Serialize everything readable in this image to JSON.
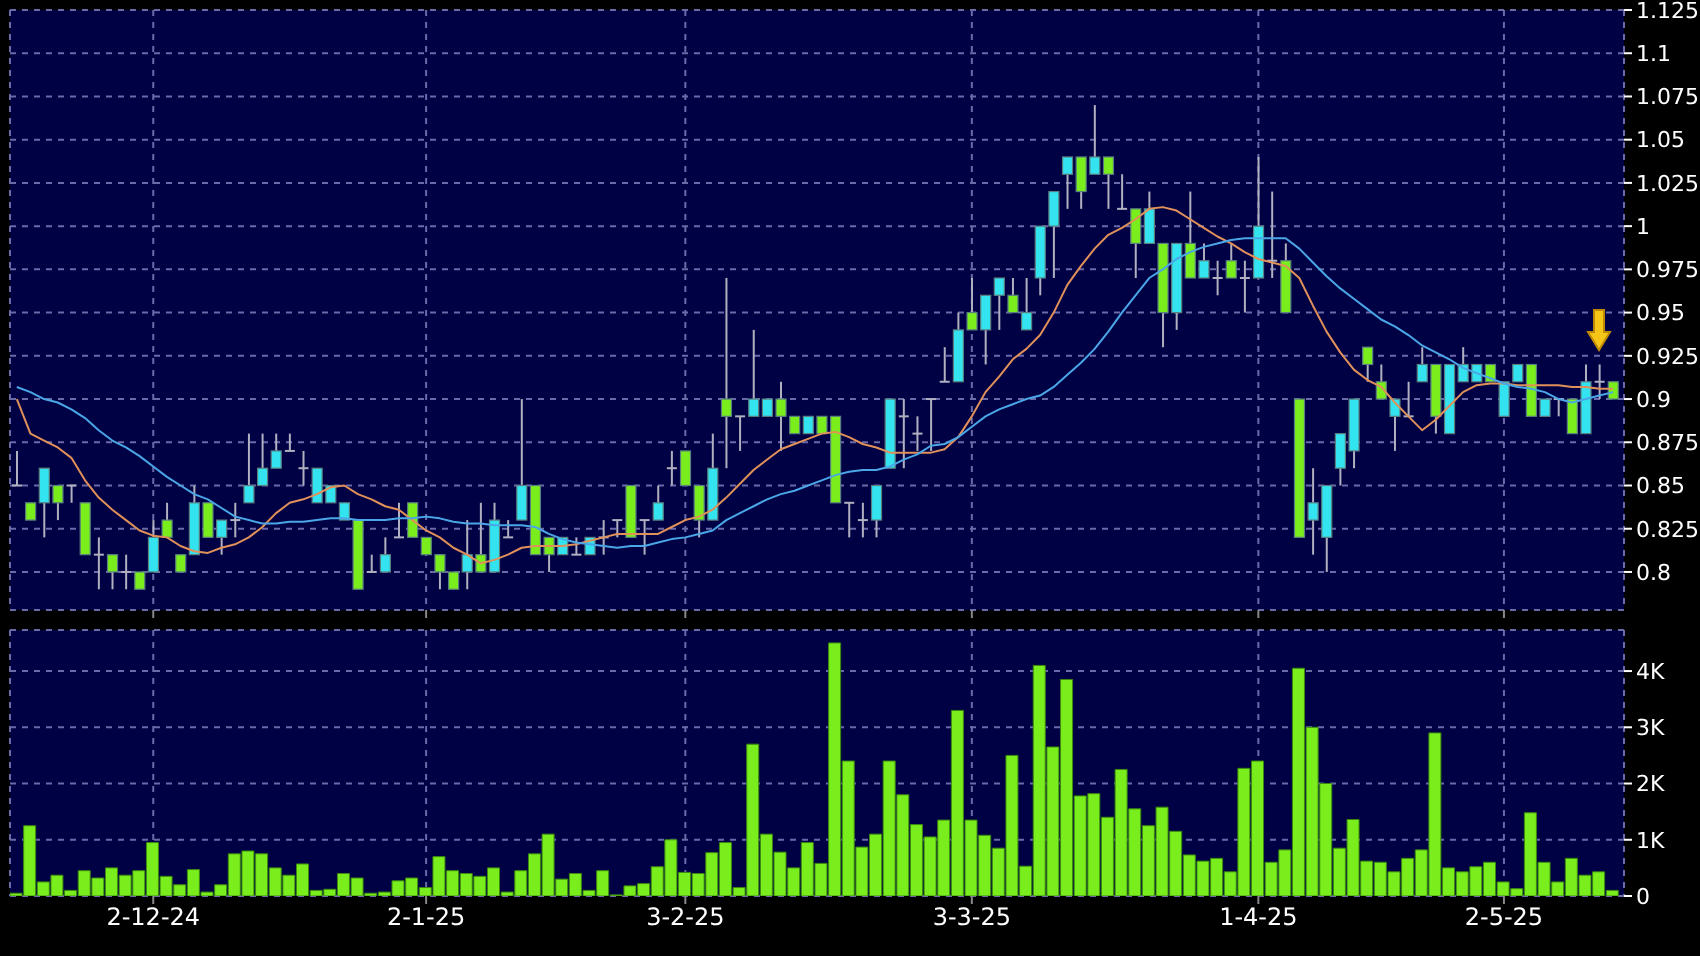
{
  "chart_data": [
    {
      "type": "candlestick",
      "ohlc": [
        [
          0.85,
          0.87,
          0.85,
          0.85
        ],
        [
          0.84,
          0.84,
          0.83,
          0.83
        ],
        [
          0.84,
          0.86,
          0.82,
          0.86
        ],
        [
          0.85,
          0.85,
          0.83,
          0.84
        ],
        [
          0.85,
          0.85,
          0.84,
          0.85
        ],
        [
          0.84,
          0.84,
          0.81,
          0.81
        ],
        [
          0.81,
          0.82,
          0.79,
          0.81
        ],
        [
          0.81,
          0.81,
          0.79,
          0.8
        ],
        [
          0.8,
          0.81,
          0.79,
          0.8
        ],
        [
          0.8,
          0.8,
          0.79,
          0.79
        ],
        [
          0.8,
          0.83,
          0.8,
          0.82
        ],
        [
          0.83,
          0.84,
          0.82,
          0.82
        ],
        [
          0.81,
          0.81,
          0.8,
          0.8
        ],
        [
          0.81,
          0.85,
          0.81,
          0.84
        ],
        [
          0.84,
          0.84,
          0.82,
          0.82
        ],
        [
          0.82,
          0.83,
          0.81,
          0.83
        ],
        [
          0.83,
          0.84,
          0.82,
          0.83
        ],
        [
          0.84,
          0.88,
          0.84,
          0.85
        ],
        [
          0.85,
          0.88,
          0.85,
          0.86
        ],
        [
          0.86,
          0.88,
          0.86,
          0.87
        ],
        [
          0.87,
          0.88,
          0.87,
          0.87
        ],
        [
          0.86,
          0.87,
          0.85,
          0.86
        ],
        [
          0.84,
          0.86,
          0.84,
          0.86
        ],
        [
          0.84,
          0.85,
          0.84,
          0.85
        ],
        [
          0.83,
          0.84,
          0.83,
          0.84
        ],
        [
          0.83,
          0.83,
          0.79,
          0.79
        ],
        [
          0.8,
          0.81,
          0.8,
          0.8
        ],
        [
          0.8,
          0.82,
          0.8,
          0.81
        ],
        [
          0.82,
          0.84,
          0.82,
          0.82
        ],
        [
          0.84,
          0.84,
          0.82,
          0.82
        ],
        [
          0.82,
          0.82,
          0.81,
          0.81
        ],
        [
          0.81,
          0.81,
          0.79,
          0.8
        ],
        [
          0.8,
          0.8,
          0.79,
          0.79
        ],
        [
          0.8,
          0.83,
          0.79,
          0.81
        ],
        [
          0.81,
          0.84,
          0.8,
          0.8
        ],
        [
          0.8,
          0.84,
          0.8,
          0.83
        ],
        [
          0.82,
          0.83,
          0.82,
          0.82
        ],
        [
          0.83,
          0.9,
          0.83,
          0.85
        ],
        [
          0.85,
          0.85,
          0.81,
          0.81
        ],
        [
          0.82,
          0.82,
          0.8,
          0.81
        ],
        [
          0.81,
          0.82,
          0.81,
          0.82
        ],
        [
          0.81,
          0.82,
          0.81,
          0.81
        ],
        [
          0.81,
          0.82,
          0.81,
          0.82
        ],
        [
          0.82,
          0.83,
          0.81,
          0.82
        ],
        [
          0.83,
          0.83,
          0.82,
          0.83
        ],
        [
          0.85,
          0.85,
          0.82,
          0.82
        ],
        [
          0.83,
          0.83,
          0.81,
          0.83
        ],
        [
          0.83,
          0.85,
          0.83,
          0.84
        ],
        [
          0.86,
          0.87,
          0.85,
          0.86
        ],
        [
          0.87,
          0.87,
          0.85,
          0.85
        ],
        [
          0.85,
          0.85,
          0.82,
          0.83
        ],
        [
          0.83,
          0.88,
          0.83,
          0.86
        ],
        [
          0.9,
          0.97,
          0.86,
          0.89
        ],
        [
          0.89,
          0.89,
          0.87,
          0.89
        ],
        [
          0.89,
          0.94,
          0.89,
          0.9
        ],
        [
          0.89,
          0.9,
          0.89,
          0.9
        ],
        [
          0.9,
          0.91,
          0.87,
          0.89
        ],
        [
          0.89,
          0.89,
          0.88,
          0.88
        ],
        [
          0.88,
          0.89,
          0.88,
          0.89
        ],
        [
          0.89,
          0.89,
          0.88,
          0.88
        ],
        [
          0.89,
          0.89,
          0.84,
          0.84
        ],
        [
          0.84,
          0.84,
          0.82,
          0.84
        ],
        [
          0.83,
          0.84,
          0.82,
          0.83
        ],
        [
          0.83,
          0.85,
          0.82,
          0.85
        ],
        [
          0.86,
          0.9,
          0.86,
          0.9
        ],
        [
          0.89,
          0.9,
          0.86,
          0.89
        ],
        [
          0.88,
          0.89,
          0.87,
          0.88
        ],
        [
          0.9,
          0.9,
          0.87,
          0.9
        ],
        [
          0.91,
          0.93,
          0.91,
          0.91
        ],
        [
          0.91,
          0.95,
          0.91,
          0.94
        ],
        [
          0.95,
          0.97,
          0.94,
          0.94
        ],
        [
          0.94,
          0.96,
          0.92,
          0.96
        ],
        [
          0.96,
          0.97,
          0.94,
          0.97
        ],
        [
          0.96,
          0.97,
          0.95,
          0.95
        ],
        [
          0.94,
          0.97,
          0.94,
          0.95
        ],
        [
          0.97,
          1.0,
          0.96,
          1.0
        ],
        [
          1.0,
          1.02,
          0.97,
          1.02
        ],
        [
          1.03,
          1.04,
          1.01,
          1.04
        ],
        [
          1.04,
          1.04,
          1.01,
          1.02
        ],
        [
          1.03,
          1.07,
          1.03,
          1.04
        ],
        [
          1.04,
          1.04,
          1.01,
          1.03
        ],
        [
          1.01,
          1.03,
          1.01,
          1.01
        ],
        [
          1.01,
          1.01,
          0.97,
          0.99
        ],
        [
          0.99,
          1.02,
          0.99,
          1.01
        ],
        [
          0.99,
          0.99,
          0.93,
          0.95
        ],
        [
          0.95,
          0.99,
          0.94,
          0.99
        ],
        [
          0.99,
          1.02,
          0.97,
          0.97
        ],
        [
          0.97,
          0.99,
          0.97,
          0.98
        ],
        [
          0.97,
          0.98,
          0.96,
          0.97
        ],
        [
          0.98,
          0.99,
          0.97,
          0.97
        ],
        [
          0.97,
          0.98,
          0.95,
          0.97
        ],
        [
          0.97,
          1.04,
          0.97,
          1.0
        ],
        [
          0.98,
          1.02,
          0.97,
          0.98
        ],
        [
          0.98,
          0.99,
          0.95,
          0.95
        ],
        [
          0.9,
          0.9,
          0.82,
          0.82
        ],
        [
          0.83,
          0.86,
          0.81,
          0.84
        ],
        [
          0.82,
          0.85,
          0.8,
          0.85
        ],
        [
          0.86,
          0.88,
          0.85,
          0.88
        ],
        [
          0.87,
          0.9,
          0.86,
          0.9
        ],
        [
          0.93,
          0.93,
          0.91,
          0.92
        ],
        [
          0.91,
          0.92,
          0.9,
          0.9
        ],
        [
          0.89,
          0.9,
          0.87,
          0.9
        ],
        [
          0.89,
          0.91,
          0.89,
          0.89
        ],
        [
          0.91,
          0.93,
          0.91,
          0.92
        ],
        [
          0.92,
          0.92,
          0.88,
          0.89
        ],
        [
          0.88,
          0.92,
          0.88,
          0.92
        ],
        [
          0.91,
          0.93,
          0.91,
          0.92
        ],
        [
          0.91,
          0.92,
          0.91,
          0.92
        ],
        [
          0.92,
          0.92,
          0.91,
          0.91
        ],
        [
          0.89,
          0.91,
          0.89,
          0.91
        ],
        [
          0.91,
          0.92,
          0.91,
          0.92
        ],
        [
          0.92,
          0.92,
          0.89,
          0.89
        ],
        [
          0.89,
          0.9,
          0.89,
          0.9
        ],
        [
          0.9,
          0.9,
          0.89,
          0.9
        ],
        [
          0.9,
          0.9,
          0.88,
          0.88
        ],
        [
          0.88,
          0.92,
          0.88,
          0.91
        ],
        [
          0.91,
          0.92,
          0.9,
          0.91
        ],
        [
          0.91,
          0.91,
          0.9,
          0.9
        ]
      ],
      "series": [
        {
          "type": "line",
          "color": "#e0915a",
          "values": [
            0.9,
            0.88,
            0.876,
            0.872,
            0.866,
            0.853,
            0.843,
            0.836,
            0.83,
            0.824,
            0.821,
            0.82,
            0.815,
            0.812,
            0.811,
            0.814,
            0.816,
            0.82,
            0.826,
            0.834,
            0.84,
            0.842,
            0.845,
            0.849,
            0.85,
            0.845,
            0.842,
            0.838,
            0.836,
            0.83,
            0.824,
            0.82,
            0.814,
            0.81,
            0.805,
            0.807,
            0.81,
            0.814,
            0.815,
            0.815,
            0.815,
            0.816,
            0.818,
            0.82,
            0.822,
            0.822,
            0.822,
            0.822,
            0.826,
            0.83,
            0.832,
            0.836,
            0.843,
            0.851,
            0.859,
            0.865,
            0.871,
            0.874,
            0.877,
            0.88,
            0.881,
            0.878,
            0.874,
            0.872,
            0.869,
            0.869,
            0.869,
            0.869,
            0.871,
            0.878,
            0.89,
            0.904,
            0.913,
            0.923,
            0.929,
            0.937,
            0.95,
            0.966,
            0.977,
            0.987,
            0.995,
            0.999,
            1.004,
            1.01,
            1.011,
            1.009,
            1.004,
            0.999,
            0.994,
            0.99,
            0.985,
            0.981,
            0.979,
            0.977,
            0.97,
            0.954,
            0.939,
            0.927,
            0.917,
            0.911,
            0.907,
            0.898,
            0.89,
            0.882,
            0.888,
            0.896,
            0.904,
            0.908,
            0.909,
            0.909,
            0.908,
            0.908,
            0.908,
            0.908,
            0.907,
            0.907,
            0.906,
            0.906
          ]
        },
        {
          "type": "line",
          "color": "#4aa6e6",
          "values": [
            0.907,
            0.904,
            0.9,
            0.898,
            0.894,
            0.889,
            0.882,
            0.876,
            0.872,
            0.867,
            0.861,
            0.855,
            0.85,
            0.845,
            0.842,
            0.837,
            0.832,
            0.83,
            0.828,
            0.828,
            0.829,
            0.829,
            0.83,
            0.831,
            0.831,
            0.83,
            0.83,
            0.83,
            0.831,
            0.831,
            0.832,
            0.831,
            0.829,
            0.828,
            0.828,
            0.827,
            0.827,
            0.827,
            0.826,
            0.822,
            0.819,
            0.817,
            0.816,
            0.815,
            0.814,
            0.815,
            0.815,
            0.817,
            0.819,
            0.82,
            0.822,
            0.824,
            0.83,
            0.834,
            0.838,
            0.842,
            0.845,
            0.847,
            0.85,
            0.853,
            0.856,
            0.858,
            0.859,
            0.859,
            0.861,
            0.865,
            0.868,
            0.873,
            0.874,
            0.878,
            0.884,
            0.89,
            0.894,
            0.897,
            0.9,
            0.902,
            0.907,
            0.914,
            0.921,
            0.929,
            0.939,
            0.95,
            0.96,
            0.97,
            0.975,
            0.981,
            0.985,
            0.988,
            0.99,
            0.992,
            0.993,
            0.993,
            0.993,
            0.993,
            0.987,
            0.979,
            0.971,
            0.964,
            0.958,
            0.952,
            0.946,
            0.942,
            0.937,
            0.931,
            0.927,
            0.923,
            0.918,
            0.915,
            0.912,
            0.909,
            0.907,
            0.906,
            0.904,
            0.9,
            0.898,
            0.9,
            0.902,
            0.904
          ]
        }
      ],
      "ylim": [
        0.778,
        1.125
      ],
      "yticks": [
        0.8,
        0.825,
        0.85,
        0.875,
        0.9,
        0.925,
        0.95,
        0.975,
        1,
        1.025,
        1.05,
        1.075,
        1.1,
        1.125
      ],
      "grid": true,
      "tick_labels": "y"
    },
    {
      "type": "bar",
      "categories": [
        null,
        null,
        null,
        null,
        null,
        null,
        null,
        null,
        null,
        null,
        "2-12-24",
        null,
        null,
        null,
        null,
        null,
        null,
        null,
        null,
        null,
        null,
        null,
        null,
        null,
        null,
        null,
        null,
        null,
        null,
        null,
        "2-1-25",
        null,
        null,
        null,
        null,
        null,
        null,
        null,
        null,
        null,
        null,
        null,
        null,
        null,
        null,
        null,
        null,
        null,
        null,
        "3-2-25",
        null,
        null,
        null,
        null,
        null,
        null,
        null,
        null,
        null,
        null,
        null,
        null,
        null,
        null,
        null,
        null,
        null,
        null,
        null,
        null,
        "3-3-25",
        null,
        null,
        null,
        null,
        null,
        null,
        null,
        null,
        null,
        null,
        null,
        null,
        null,
        null,
        null,
        null,
        null,
        null,
        null,
        null,
        "1-4-25",
        null,
        null,
        null,
        null,
        null,
        null,
        null,
        null,
        null,
        null,
        null,
        null,
        null,
        null,
        null,
        null,
        null,
        "2-5-25",
        null,
        null,
        null,
        null,
        null,
        null,
        null,
        null
      ],
      "color": "#7aee1c",
      "values": [
        50,
        1250,
        250,
        370,
        100,
        450,
        320,
        500,
        370,
        450,
        950,
        350,
        200,
        470,
        70,
        200,
        750,
        800,
        750,
        500,
        370,
        570,
        100,
        120,
        400,
        320,
        50,
        70,
        270,
        320,
        150,
        700,
        450,
        400,
        350,
        500,
        70,
        450,
        750,
        1100,
        300,
        400,
        100,
        450,
        20,
        180,
        220,
        520,
        1000,
        420,
        400,
        770,
        950,
        150,
        2700,
        1100,
        780,
        500,
        950,
        580,
        4500,
        2400,
        870,
        1100,
        2400,
        1800,
        1270,
        1050,
        1350,
        3300,
        1350,
        1080,
        850,
        2500,
        530,
        4100,
        2650,
        3850,
        1780,
        1820,
        1400,
        2250,
        1550,
        1250,
        1580,
        1150,
        730,
        620,
        670,
        430,
        2270,
        2400,
        600,
        820,
        4050,
        3000,
        2000,
        850,
        1360,
        620,
        600,
        430,
        670,
        820,
        2900,
        500,
        430,
        520,
        600,
        250,
        130,
        1480,
        600,
        250,
        670,
        370,
        430,
        100
      ],
      "ylim": [
        0,
        4730
      ],
      "yticks": [
        0,
        {
          "value": 1000,
          "label": "1K"
        },
        {
          "value": 2000,
          "label": "2K"
        },
        {
          "value": 3000,
          "label": "3K"
        },
        {
          "value": 4000,
          "label": "4K"
        }
      ],
      "grid": true
    }
  ]
}
